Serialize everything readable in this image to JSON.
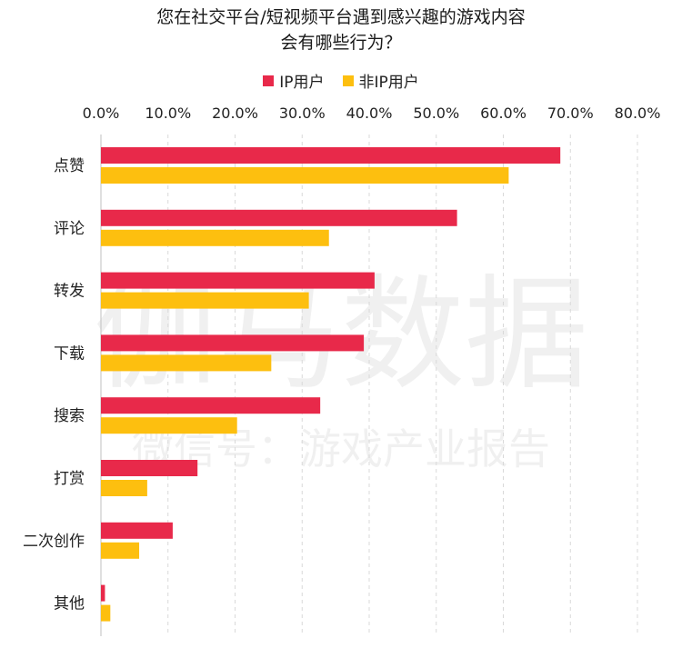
{
  "chart_data": {
    "type": "bar",
    "orientation": "horizontal",
    "title": [
      "您在社交平台/短视频平台遇到感兴趣的游戏内容",
      "会有哪些行为？"
    ],
    "categories": [
      "点赞",
      "评论",
      "转发",
      "下载",
      "搜索",
      "打赏",
      "二次创作",
      "其他"
    ],
    "series": [
      {
        "name": "IP用户",
        "color": "#E8294A",
        "values": [
          68.5,
          53.1,
          40.8,
          39.2,
          32.7,
          14.4,
          10.7,
          0.6
        ]
      },
      {
        "name": "非IP用户",
        "color": "#FDBF0F",
        "values": [
          60.8,
          34.0,
          31.0,
          25.4,
          20.3,
          6.9,
          5.7,
          1.4
        ]
      }
    ],
    "xlim": [
      0,
      80
    ],
    "xticks": [
      "0.0%",
      "10.0%",
      "20.0%",
      "30.0%",
      "40.0%",
      "50.0%",
      "60.0%",
      "70.0%",
      "80.0%"
    ],
    "axis_position": "top",
    "grid": "vertical dashed",
    "legend_position": "top-center",
    "watermark": [
      "伽马数据",
      "微信号：游戏产业报告"
    ]
  }
}
